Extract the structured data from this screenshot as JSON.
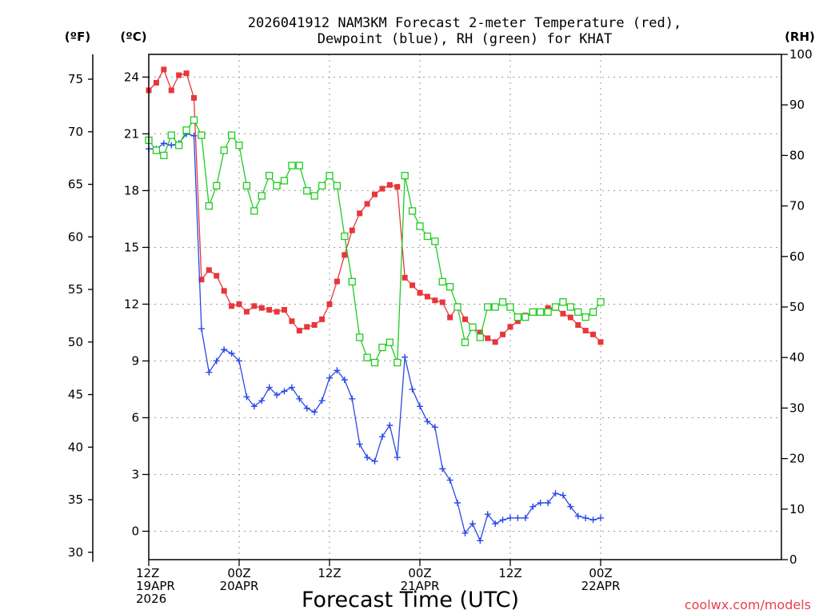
{
  "chart_data": {
    "type": "line",
    "title": [
      "2026041912 NAM3KM Forecast 2-meter Temperature (red),",
      "Dewpoint (blue), RH (green) for KHAT"
    ],
    "xlabel": "Forecast Time (UTC)",
    "credit": "coolwx.com/models",
    "units": {
      "fahrenheit": "(ºF)",
      "celsius": "(ºC)",
      "rh": "(RH)"
    },
    "x_hours": [
      0,
      84
    ],
    "x_ticks": [
      {
        "hour": 0,
        "lines": [
          "12Z",
          "19APR",
          "2026"
        ]
      },
      {
        "hour": 12,
        "lines": [
          "00Z",
          "20APR"
        ]
      },
      {
        "hour": 24,
        "lines": [
          "12Z"
        ]
      },
      {
        "hour": 36,
        "lines": [
          "00Z",
          "21APR"
        ]
      },
      {
        "hour": 48,
        "lines": [
          "12Z"
        ]
      },
      {
        "hour": 60,
        "lines": [
          "00Z",
          "22APR"
        ]
      }
    ],
    "celsius_axis": {
      "range": [
        -1.5,
        25.2
      ],
      "ticks": [
        0,
        3,
        6,
        9,
        12,
        15,
        18,
        21,
        24
      ]
    },
    "fahrenheit_axis": {
      "ticks": [
        30,
        35,
        40,
        45,
        50,
        55,
        60,
        65,
        70,
        75
      ]
    },
    "rh_axis": {
      "range": [
        0,
        100
      ],
      "ticks": [
        0,
        10,
        20,
        30,
        40,
        50,
        60,
        70,
        80,
        90,
        100
      ]
    },
    "series": [
      {
        "name": "Temperature",
        "axis": "celsius",
        "color": "#e8363c",
        "marker": "filled-square",
        "hours": [
          0,
          1,
          2,
          3,
          4,
          5,
          6,
          7,
          8,
          9,
          10,
          11,
          12,
          13,
          14,
          15,
          16,
          17,
          18,
          19,
          20,
          21,
          22,
          23,
          24,
          25,
          26,
          27,
          28,
          29,
          30,
          31,
          32,
          33,
          34,
          35,
          36,
          37,
          38,
          39,
          40,
          41,
          42,
          43,
          44,
          45,
          46,
          47,
          48,
          49,
          50,
          51,
          52,
          53,
          54,
          55,
          56,
          57,
          58,
          59,
          60
        ],
        "values": [
          23.3,
          23.7,
          24.4,
          23.3,
          24.1,
          24.2,
          22.9,
          13.3,
          13.8,
          13.5,
          12.7,
          11.9,
          12.0,
          11.6,
          11.9,
          11.8,
          11.7,
          11.6,
          11.7,
          11.1,
          10.6,
          10.8,
          10.9,
          11.2,
          12.0,
          13.2,
          14.6,
          15.9,
          16.8,
          17.3,
          17.8,
          18.1,
          18.3,
          18.2,
          13.4,
          13.0,
          12.6,
          12.4,
          12.2,
          12.1,
          11.3,
          11.9,
          11.2,
          10.8,
          10.5,
          10.2,
          10.0,
          10.4,
          10.8,
          11.1,
          11.4,
          11.6,
          11.6,
          11.8,
          11.8,
          11.5,
          11.3,
          10.9,
          10.6,
          10.4,
          10.0
        ]
      },
      {
        "name": "Dewpoint",
        "axis": "celsius",
        "color": "#2a49e6",
        "marker": "plus",
        "hours": [
          0,
          1,
          2,
          3,
          4,
          5,
          6,
          7,
          8,
          9,
          10,
          11,
          12,
          13,
          14,
          15,
          16,
          17,
          18,
          19,
          20,
          21,
          22,
          23,
          24,
          25,
          26,
          27,
          28,
          29,
          30,
          31,
          32,
          33,
          34,
          35,
          36,
          37,
          38,
          39,
          40,
          41,
          42,
          43,
          44,
          45,
          46,
          47,
          48,
          49,
          50,
          51,
          52,
          53,
          54,
          55,
          56,
          57,
          58,
          59,
          60
        ],
        "values": [
          20.2,
          20.2,
          20.5,
          20.4,
          20.5,
          21.0,
          20.9,
          10.7,
          8.4,
          9.0,
          9.6,
          9.4,
          9.0,
          7.1,
          6.6,
          6.9,
          7.6,
          7.2,
          7.4,
          7.6,
          7.0,
          6.5,
          6.3,
          6.9,
          8.1,
          8.5,
          8.0,
          7.0,
          4.6,
          3.9,
          3.7,
          5.0,
          5.6,
          3.9,
          9.2,
          7.5,
          6.6,
          5.8,
          5.5,
          3.3,
          2.7,
          1.5,
          -0.1,
          0.4,
          -0.5,
          0.9,
          0.4,
          0.6,
          0.7,
          0.7,
          0.7,
          1.3,
          1.5,
          1.5,
          2.0,
          1.9,
          1.3,
          0.8,
          0.7,
          0.6,
          0.7
        ]
      },
      {
        "name": "RH",
        "axis": "rh",
        "color": "#1fcc1f",
        "marker": "open-square",
        "hours": [
          0,
          1,
          2,
          3,
          4,
          5,
          6,
          7,
          8,
          9,
          10,
          11,
          12,
          13,
          14,
          15,
          16,
          17,
          18,
          19,
          20,
          21,
          22,
          23,
          24,
          25,
          26,
          27,
          28,
          29,
          30,
          31,
          32,
          33,
          34,
          35,
          36,
          37,
          38,
          39,
          40,
          41,
          42,
          43,
          44,
          45,
          46,
          47,
          48,
          49,
          50,
          51,
          52,
          53,
          54,
          55,
          56,
          57,
          58,
          59,
          60
        ],
        "values": [
          83,
          81,
          80,
          84,
          82,
          85,
          87,
          84,
          70,
          74,
          81,
          84,
          82,
          74,
          69,
          72,
          76,
          74,
          75,
          78,
          78,
          73,
          72,
          74,
          76,
          74,
          64,
          55,
          44,
          40,
          39,
          42,
          43,
          39,
          76,
          69,
          66,
          64,
          63,
          55,
          54,
          50,
          43,
          46,
          44,
          50,
          50,
          51,
          50,
          48,
          48,
          49,
          49,
          49,
          50,
          51,
          50,
          49,
          48,
          49,
          51
        ]
      }
    ]
  }
}
